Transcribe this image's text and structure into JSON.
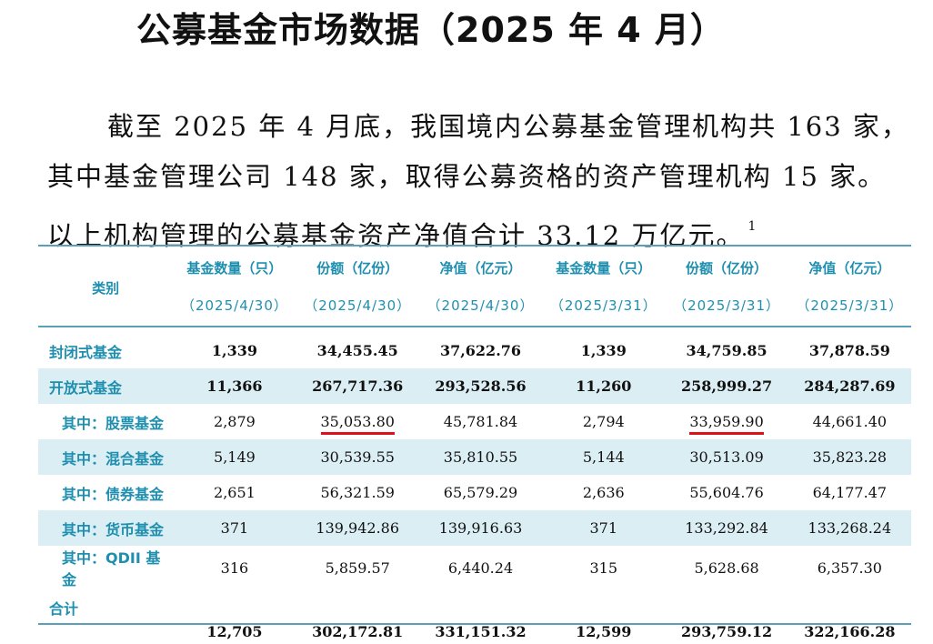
{
  "title": "公募基金市场数据（2025 年 4 月）",
  "paragraph": {
    "line1": "截至 2025 年 4 月底，我国境内公募基金管理机构共 163 家，",
    "line2": "其中基金管理公司 148 家，取得公募资格的资产管理机构 15 家。",
    "line3": "以上机构管理的公募基金资产净值合计 33.12 万亿元。",
    "footnote": "1"
  },
  "table": {
    "category_header": "类别",
    "headers": [
      {
        "label": "基金数量（只）",
        "date": "（2025/4/30）"
      },
      {
        "label": "份额（亿份）",
        "date": "（2025/4/30）"
      },
      {
        "label": "净值（亿元）",
        "date": "（2025/4/30）"
      },
      {
        "label": "基金数量（只）",
        "date": "（2025/3/31）"
      },
      {
        "label": "份额（亿份）",
        "date": "（2025/3/31）"
      },
      {
        "label": "净值（亿元）",
        "date": "（2025/3/31）"
      }
    ],
    "rows": [
      {
        "name": "封闭式基金",
        "values": [
          "1,339",
          "34,455.45",
          "37,622.76",
          "1,339",
          "34,759.85",
          "37,878.59"
        ]
      },
      {
        "name": "开放式基金",
        "values": [
          "11,366",
          "267,717.36",
          "293,528.56",
          "11,260",
          "258,999.27",
          "284,287.69"
        ]
      },
      {
        "name": "其中：股票基金",
        "values": [
          "2,879",
          "35,053.80",
          "45,781.84",
          "2,794",
          "33,959.90",
          "44,661.40"
        ]
      },
      {
        "name": "其中：混合基金",
        "values": [
          "5,149",
          "30,539.55",
          "35,810.55",
          "5,144",
          "30,513.09",
          "35,823.28"
        ]
      },
      {
        "name": "其中：债券基金",
        "values": [
          "2,651",
          "56,321.59",
          "65,579.29",
          "2,636",
          "55,604.76",
          "64,177.47"
        ]
      },
      {
        "name": "其中：货币基金",
        "values": [
          "371",
          "139,942.86",
          "139,916.63",
          "371",
          "133,292.84",
          "133,268.24"
        ]
      },
      {
        "name": "其中：QDII 基金",
        "values": [
          "316",
          "5,859.57",
          "6,440.24",
          "315",
          "5,628.68",
          "6,357.30"
        ]
      },
      {
        "name": "合计",
        "values": [
          "12,705",
          "302,172.81",
          "331,151.32",
          "12,599",
          "293,759.12",
          "322,166.28"
        ]
      }
    ]
  },
  "colors": {
    "accent": "#1f8fb0",
    "row_shade": "#dbeef4",
    "rule": "#5aa0b8",
    "underline": "#e0101a"
  }
}
